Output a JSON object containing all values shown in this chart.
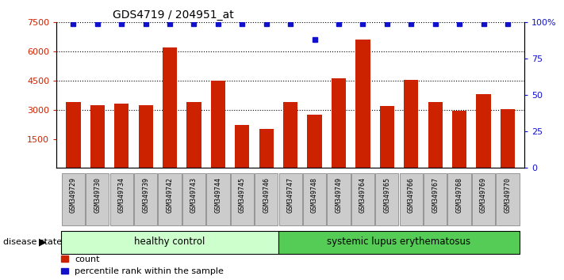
{
  "title": "GDS4719 / 204951_at",
  "samples": [
    "GSM349729",
    "GSM349730",
    "GSM349734",
    "GSM349739",
    "GSM349742",
    "GSM349743",
    "GSM349744",
    "GSM349745",
    "GSM349746",
    "GSM349747",
    "GSM349748",
    "GSM349749",
    "GSM349764",
    "GSM349765",
    "GSM349766",
    "GSM349767",
    "GSM349768",
    "GSM349769",
    "GSM349770"
  ],
  "counts": [
    3400,
    3250,
    3300,
    3250,
    6200,
    3400,
    4500,
    2200,
    2000,
    3400,
    2750,
    4600,
    6600,
    3200,
    4550,
    3400,
    2950,
    3800,
    3050
  ],
  "percentiles": [
    99,
    99,
    99,
    99,
    99,
    99,
    99,
    99,
    99,
    99,
    88,
    99,
    99,
    99,
    99,
    99,
    99,
    99,
    99
  ],
  "bar_color": "#cc2200",
  "dot_color": "#1111cc",
  "ylim_left": [
    0,
    7500
  ],
  "bar_bottom": 1500,
  "yaxis_min_display": 1500,
  "yticks_left": [
    1500,
    3000,
    4500,
    6000,
    7500
  ],
  "yticks_right": [
    0,
    25,
    50,
    75,
    100
  ],
  "grid_lines": [
    3000,
    4500,
    6000,
    7500
  ],
  "healthy_control_count": 9,
  "healthy_control_label": "healthy control",
  "disease_label": "systemic lupus erythematosus",
  "legend_count_label": "count",
  "legend_percentile_label": "percentile rank within the sample",
  "disease_state_label": "disease state",
  "background_color": "#ffffff",
  "tick_label_color_left": "#cc2200",
  "tick_label_color_right": "#1111cc",
  "healthy_bg": "#ccffcc",
  "disease_bg": "#55cc55",
  "tick_box_bg": "#cccccc",
  "tick_box_border": "#888888"
}
